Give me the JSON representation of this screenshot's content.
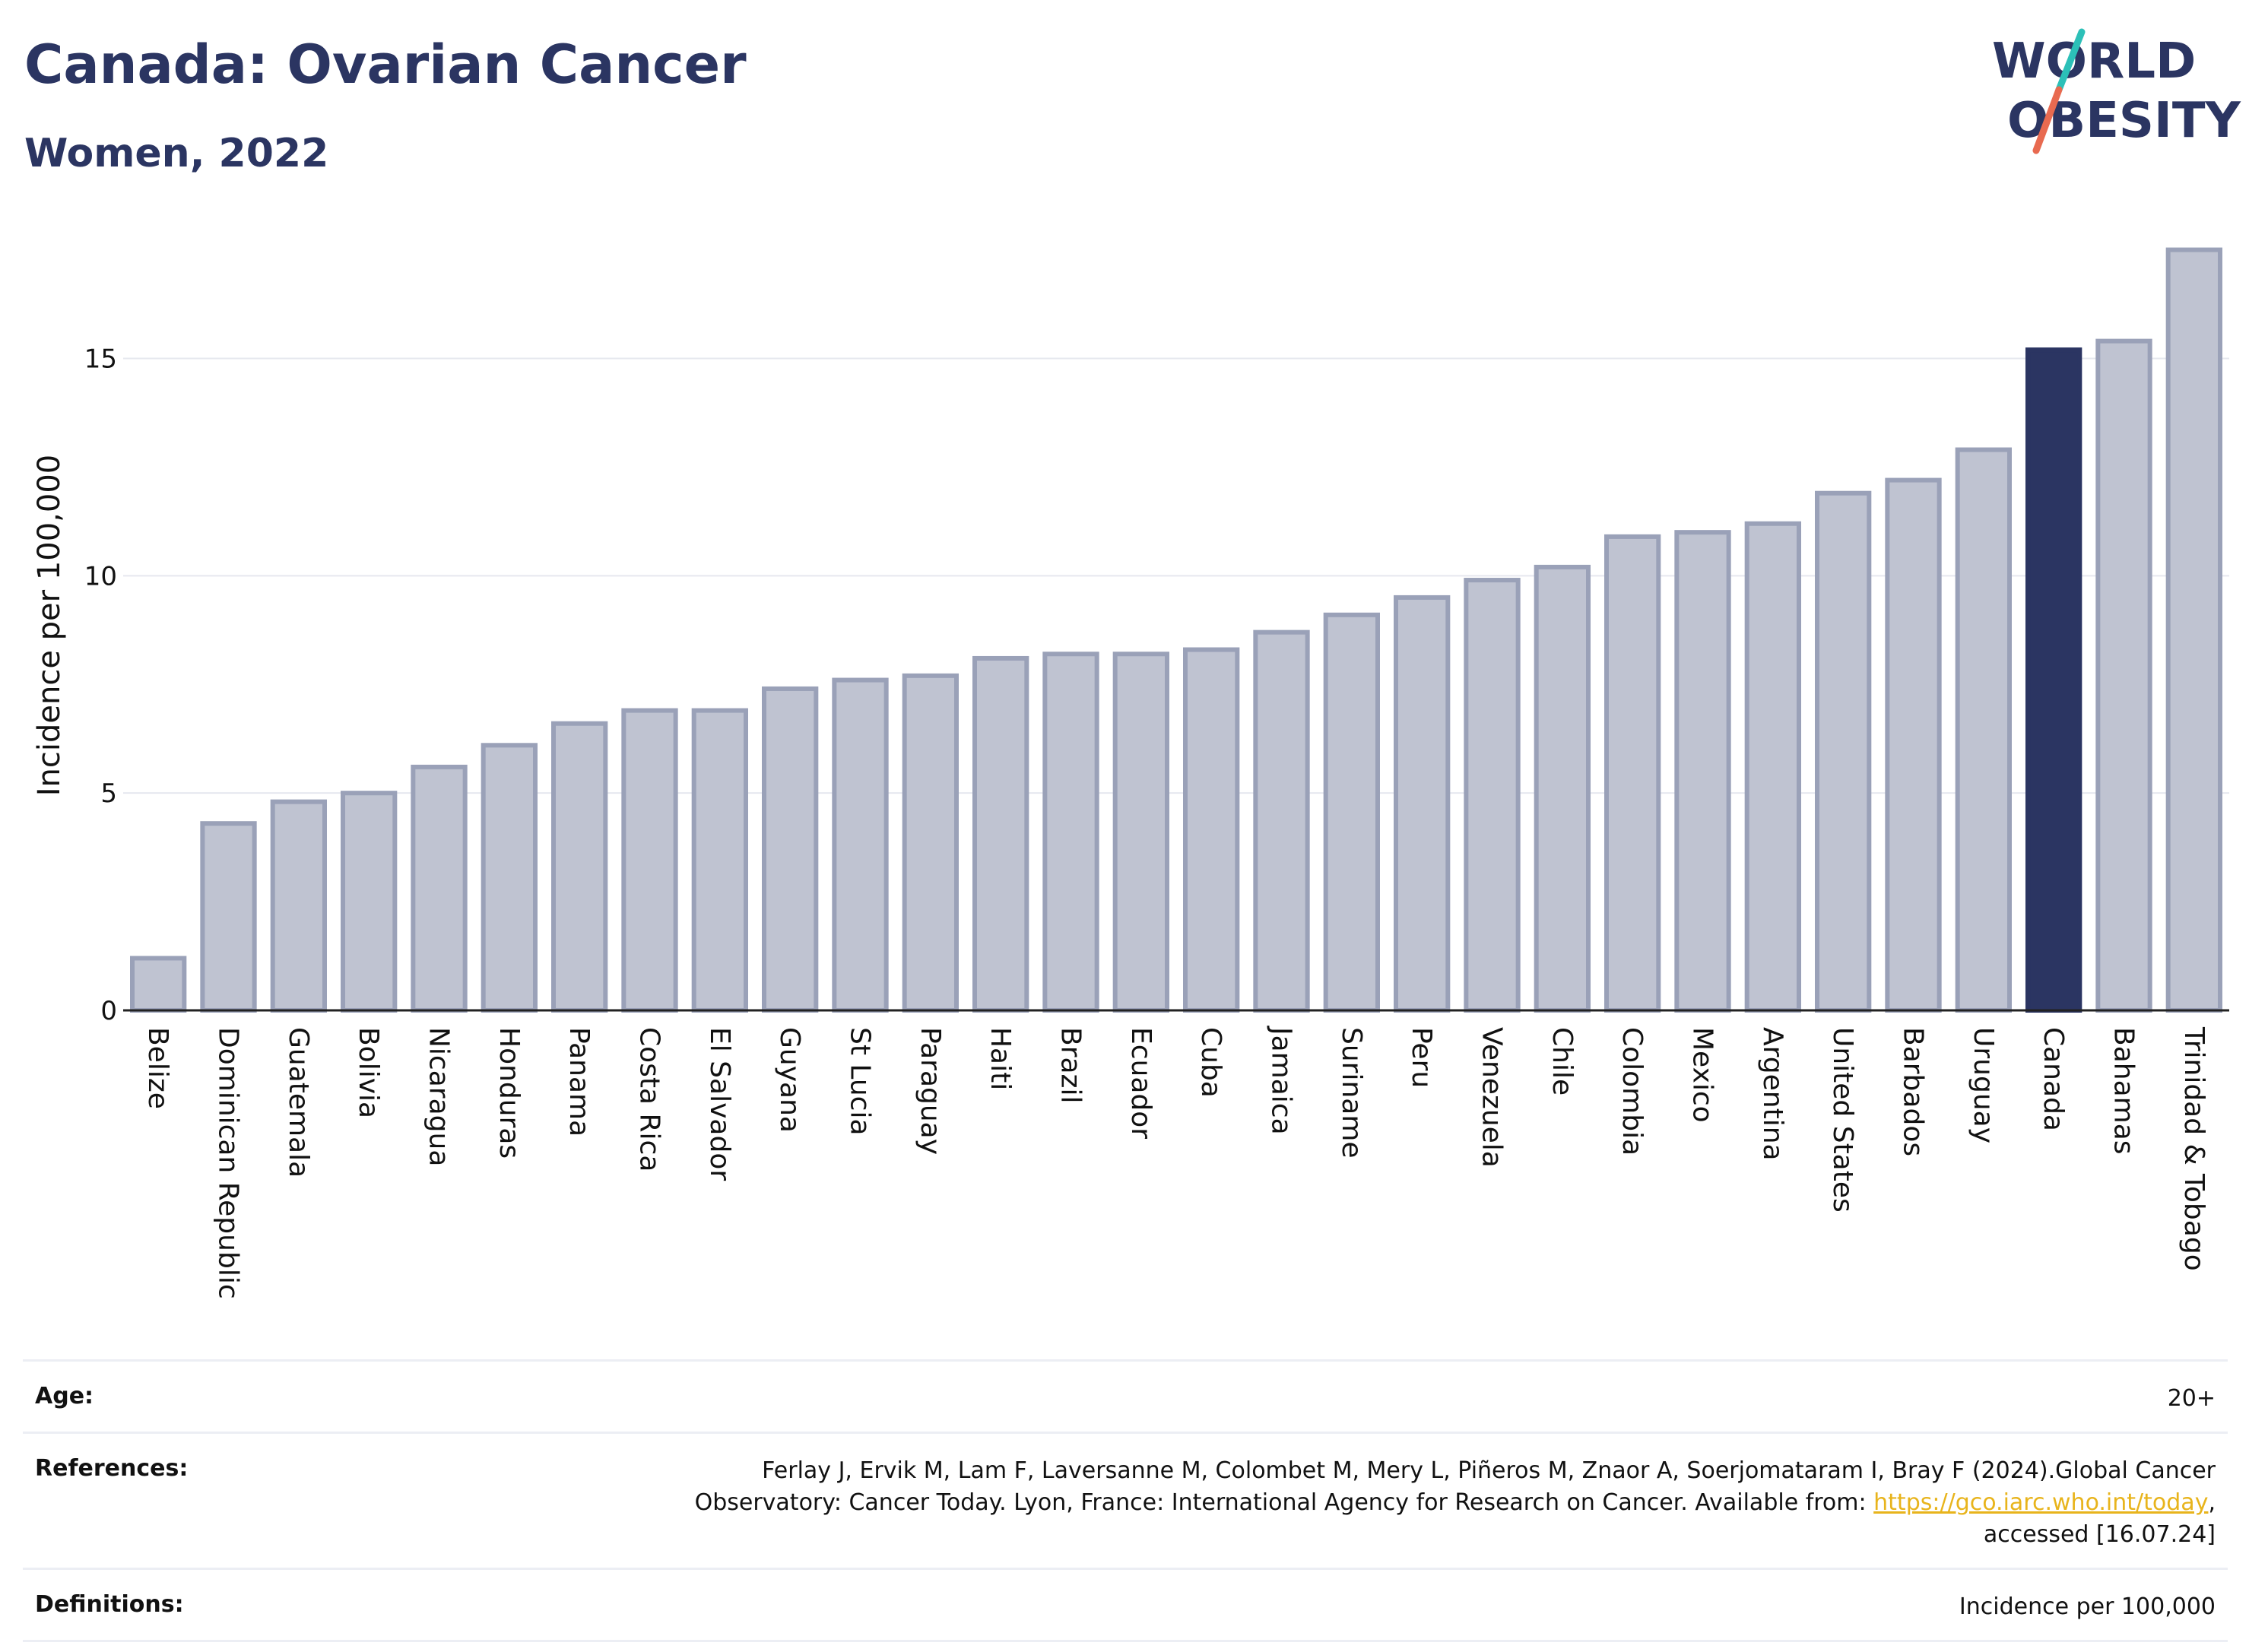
{
  "header": {
    "title": "Canada: Ovarian Cancer",
    "subtitle": "Women, 2022"
  },
  "logo": {
    "line1": "WORLD",
    "line2": "OBESITY",
    "accent_colors": [
      "#2cc0b8",
      "#e86a50"
    ]
  },
  "chart_data": {
    "type": "bar",
    "categories": [
      "Belize",
      "Dominican Republic",
      "Guatemala",
      "Bolivia",
      "Nicaragua",
      "Honduras",
      "Panama",
      "Costa Rica",
      "El Salvador",
      "Guyana",
      "St Lucia",
      "Paraguay",
      "Haiti",
      "Brazil",
      "Ecuador",
      "Cuba",
      "Jamaica",
      "Suriname",
      "Peru",
      "Venezuela",
      "Chile",
      "Colombia",
      "Mexico",
      "Argentina",
      "United States",
      "Barbados",
      "Uruguay",
      "Canada",
      "Bahamas",
      "Trinidad & Tobago"
    ],
    "values": [
      1.2,
      4.3,
      4.8,
      5.0,
      5.6,
      6.1,
      6.6,
      6.9,
      6.9,
      7.4,
      7.6,
      7.7,
      8.1,
      8.2,
      8.2,
      8.3,
      8.7,
      9.1,
      9.5,
      9.9,
      10.2,
      10.9,
      11.0,
      11.2,
      11.9,
      12.2,
      12.9,
      15.2,
      15.4,
      17.5
    ],
    "highlight": "Canada",
    "ylabel": "Incidence per 100,000",
    "xlabel": "",
    "ylim": [
      0,
      18
    ],
    "yticks": [
      0,
      5,
      10,
      15
    ],
    "grid": true,
    "colors": {
      "bar": "#bfc3d1",
      "bar_border": "#9aa1b8",
      "highlight": "#2b3562",
      "grid": "#e6e8ef",
      "axis": "#222222"
    }
  },
  "info": {
    "age_label": "Age:",
    "age_value": "20+",
    "references_label": "References:",
    "references_line1": "Ferlay J, Ervik M, Lam F, Laversanne M, Colombet M, Mery L, Piñeros M, Znaor A, Soerjomataram I, Bray F (2024).Global Cancer",
    "references_line2_prefix": "Observatory: Cancer Today. Lyon, France: International Agency for Research on Cancer. Available from: ",
    "references_link": "https://gco.iarc.who.int/today",
    "references_line2_suffix": ",",
    "references_line3": "accessed [16.07.24]",
    "definitions_label": "Definitions:",
    "definitions_value": "Incidence per 100,000"
  }
}
